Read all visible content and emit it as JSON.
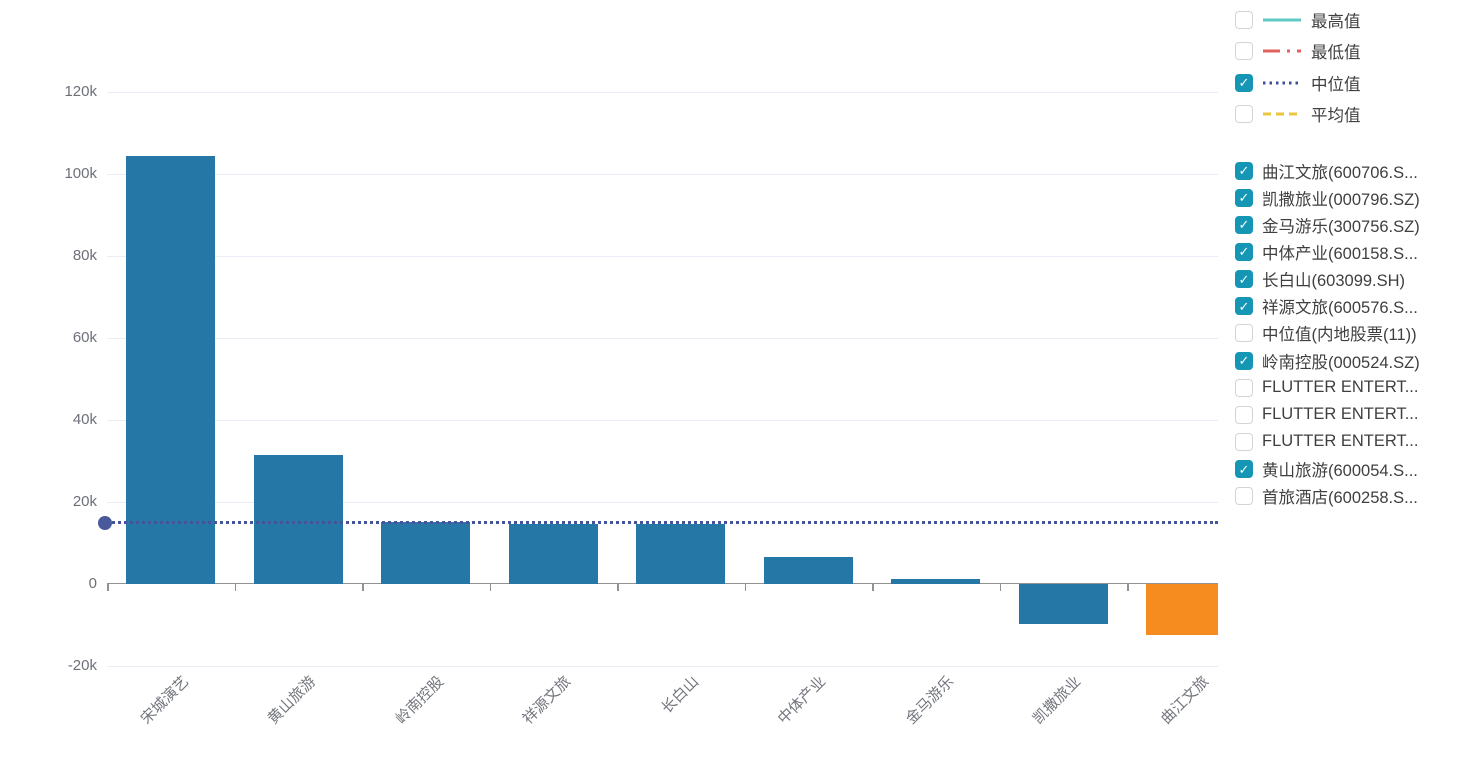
{
  "chart_data": {
    "type": "bar",
    "title": "",
    "xlabel": "",
    "ylabel": "",
    "categories": [
      "宋城演艺",
      "黄山旅游",
      "岭南控股",
      "祥源文旅",
      "长白山",
      "中体产业",
      "金马游乐",
      "凯撒旅业",
      "曲江文旅"
    ],
    "values": [
      104400,
      31500,
      15100,
      14700,
      14700,
      6600,
      1100,
      -9800,
      -12500
    ],
    "bar_colors": [
      "#2577a5",
      "#2577a5",
      "#2577a5",
      "#2577a5",
      "#2577a5",
      "#2577a5",
      "#2577a5",
      "#2577a5",
      "#f68c20"
    ],
    "ylim": [
      -20000,
      120000
    ],
    "y_ticks": [
      {
        "label": "120k",
        "value": 120000
      },
      {
        "label": "100k",
        "value": 100000
      },
      {
        "label": "80k",
        "value": 80000
      },
      {
        "label": "60k",
        "value": 60000
      },
      {
        "label": "40k",
        "value": 40000
      },
      {
        "label": "20k",
        "value": 20000
      },
      {
        "label": "0",
        "value": 0
      },
      {
        "label": "-20k",
        "value": -20000
      }
    ],
    "grid": true,
    "legend_position": "right",
    "median_line": {
      "label": "中位值",
      "value": 14900,
      "color": "#45549b",
      "dot_color": "#4a589c",
      "style": "dotted"
    }
  },
  "legend_lines": {
    "checked_color": "#1596b5",
    "items": [
      {
        "label": "最高值",
        "checked": false,
        "color": "#5fc8c4",
        "style": "solid"
      },
      {
        "label": "最低值",
        "checked": false,
        "color": "#e2605e",
        "style": "dashdot"
      },
      {
        "label": "中位值",
        "checked": true,
        "color": "#3e4e9e",
        "style": "dotted"
      },
      {
        "label": "平均值",
        "checked": false,
        "color": "#ecc53f",
        "style": "dashed"
      }
    ]
  },
  "legend_series": {
    "checked_color": "#1596b5",
    "items": [
      {
        "label": "曲江文旅(600706.S...",
        "checked": true
      },
      {
        "label": "凯撒旅业(000796.SZ)",
        "checked": true
      },
      {
        "label": "金马游乐(300756.SZ)",
        "checked": true
      },
      {
        "label": "中体产业(600158.S...",
        "checked": true
      },
      {
        "label": "长白山(603099.SH)",
        "checked": true
      },
      {
        "label": "祥源文旅(600576.S...",
        "checked": true
      },
      {
        "label": "中位值(内地股票(11))",
        "checked": false
      },
      {
        "label": "岭南控股(000524.SZ)",
        "checked": true
      },
      {
        "label": "FLUTTER ENTERT...",
        "checked": false
      },
      {
        "label": "FLUTTER ENTERT...",
        "checked": false
      },
      {
        "label": "FLUTTER ENTERT...",
        "checked": false
      },
      {
        "label": "黄山旅游(600054.S...",
        "checked": true
      },
      {
        "label": "首旅酒店(600258.S...",
        "checked": false
      }
    ]
  },
  "glyphs": {
    "checkmark": "✓"
  }
}
